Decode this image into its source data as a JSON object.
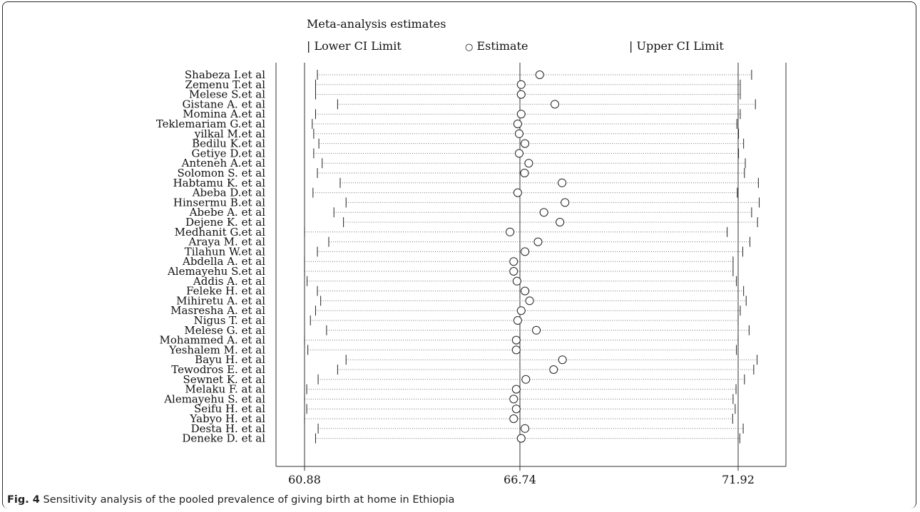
{
  "figure": {
    "caption_label": "Fig. 4",
    "caption_text": "Sensitivity analysis of the pooled prevalence of giving birth at home in Ethiopia"
  },
  "legend": {
    "title": "Meta-analysis estimates",
    "lower_label": "Lower CI Limit",
    "estimate_label": "Estimate",
    "upper_label": "Upper CI Limit"
  },
  "chart_data": {
    "type": "forest-sensitivity",
    "xlim": [
      60.88,
      71.92
    ],
    "x_axis_ticks": [
      {
        "value": 60.88,
        "label": "60.88"
      },
      {
        "value": 66.74,
        "label": "66.74"
      },
      {
        "value": 71.92,
        "label": "71.92"
      }
    ],
    "reference_lines": [
      60.88,
      66.74,
      71.92
    ],
    "study_labels": [
      "Shabeza I.et al",
      "Zemenu T.et al",
      "Melese S.et al",
      "Gistane A. et al",
      "Momina A.et al",
      "Teklemariam G.et al",
      "yilkal M.et al",
      "Bedilu K.et al",
      "Getiye D.et al",
      "Anteneh A.et al",
      "Solomon S. et al",
      "Habtamu K. et al",
      "Abeba D.et al",
      "Hinsermu B.et al",
      "Abebe A. et al",
      "Dejene K. et al",
      "Medhanit G.et al",
      "Araya M. et al",
      "Tilahun W.et al",
      "Abdella A. et al",
      "Alemayehu S.et al",
      "Addis A. et al",
      "Feleke H. et al",
      "Mihiretu A. et al",
      "Masresha A. et al",
      "Nigus T. et al",
      "Melese G. et al",
      "Mohammed A. et al",
      "Yeshalem M. et al",
      "Bayu H. et al",
      "Tewodros E. et al",
      "Sewnet K. et al",
      "Melaku F. at al",
      "Alemayehu S. et al",
      "Seifu H. et al",
      "Yabyo H. et al",
      "Desta H. et al",
      "Deneke D. et al"
    ],
    "lower": [
      61.23,
      61.18,
      61.18,
      61.78,
      61.18,
      61.09,
      61.13,
      61.27,
      61.13,
      61.36,
      61.23,
      61.85,
      61.11,
      62.01,
      61.68,
      61.94,
      60.88,
      61.54,
      61.23,
      60.88,
      60.88,
      60.95,
      61.23,
      61.32,
      61.18,
      61.04,
      61.48,
      60.88,
      60.97,
      62.01,
      61.78,
      61.25,
      60.94,
      60.88,
      60.94,
      60.88,
      61.25,
      61.18
    ],
    "estimate": [
      67.21,
      66.77,
      66.77,
      67.57,
      66.77,
      66.68,
      66.72,
      66.86,
      66.72,
      66.95,
      66.85,
      67.74,
      66.68,
      67.81,
      67.31,
      67.69,
      66.47,
      67.17,
      66.86,
      66.57,
      66.57,
      66.66,
      66.86,
      66.97,
      66.77,
      66.68,
      67.13,
      66.64,
      66.64,
      67.75,
      67.54,
      66.88,
      66.64,
      66.57,
      66.64,
      66.57,
      66.86,
      66.77
    ],
    "upper": [
      72.24,
      71.97,
      71.97,
      72.33,
      71.97,
      71.89,
      71.93,
      72.05,
      71.93,
      72.09,
      72.07,
      72.4,
      71.9,
      72.42,
      72.24,
      72.38,
      71.66,
      72.2,
      72.03,
      71.8,
      71.8,
      71.88,
      72.05,
      72.11,
      71.97,
      71.92,
      72.18,
      71.92,
      71.88,
      72.37,
      72.29,
      72.07,
      71.87,
      71.8,
      71.85,
      71.79,
      72.04,
      71.96
    ]
  }
}
